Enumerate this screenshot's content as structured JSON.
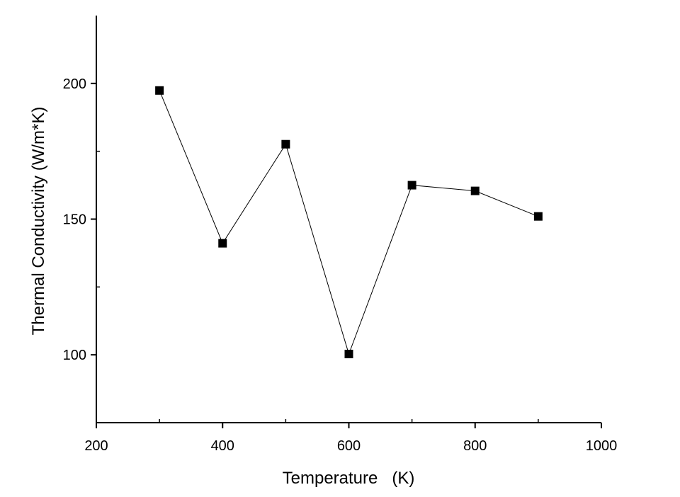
{
  "chart_data": {
    "type": "line",
    "title": "",
    "xlabel": "Temperature   (K)",
    "ylabel": "Thermal Conductivity  (W/m*K)",
    "xlim": [
      200,
      1000
    ],
    "ylim": [
      75,
      225
    ],
    "xticks": [
      200,
      400,
      600,
      800,
      1000
    ],
    "yticks": [
      100,
      150,
      200
    ],
    "xtick_labels": [
      "200",
      "400",
      "600",
      "800",
      "1000"
    ],
    "ytick_labels": [
      "100",
      "150",
      "200"
    ],
    "grid": false,
    "marker": "square",
    "colors": {
      "line": "#000000",
      "marker": "#000000"
    },
    "series": [
      {
        "x": [
          300,
          400,
          500,
          600,
          700,
          800,
          900
        ],
        "y": [
          197.4,
          141.1,
          177.6,
          100.3,
          162.5,
          160.4,
          151.0
        ]
      }
    ]
  }
}
